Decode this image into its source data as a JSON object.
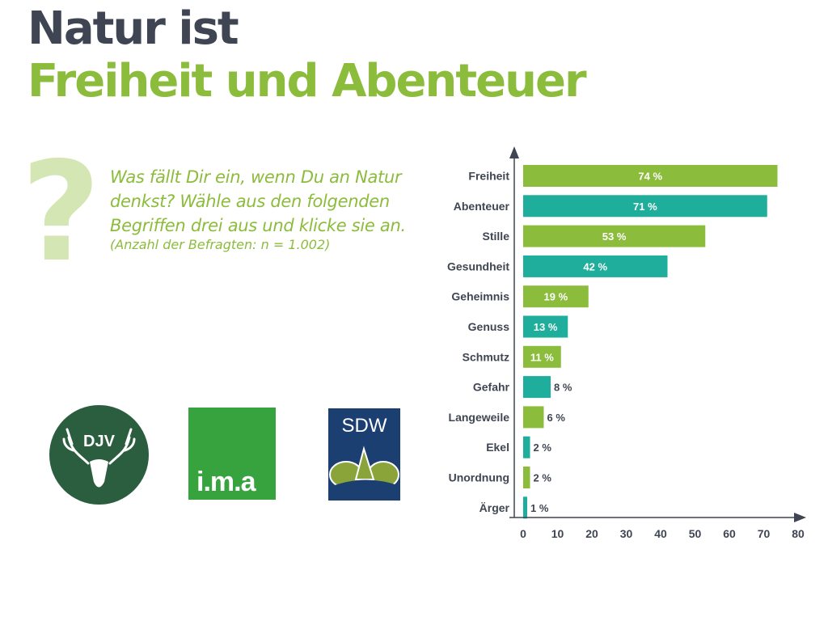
{
  "title_line1": "Natur ist",
  "title_line2": "Freiheit und Abenteuer",
  "question_mark": "?",
  "question": "Was fällt Dir ein, wenn Du an Natur denkst? Wähle aus den folgenden Begriffen drei aus und klicke sie an.",
  "sample_note": "(Anzahl der Befragten: n = 1.002)",
  "logos": {
    "djv": "DJV",
    "ima": "i.m.a",
    "sdw": "SDW"
  },
  "colors": {
    "green": "#8cbc3c",
    "teal": "#1fae9b",
    "dark": "#3f4552"
  },
  "chart_data": {
    "type": "bar",
    "orientation": "horizontal",
    "categories": [
      "Freiheit",
      "Abenteuer",
      "Stille",
      "Gesundheit",
      "Geheimnis",
      "Genuss",
      "Schmutz",
      "Gefahr",
      "Langeweile",
      "Ekel",
      "Unordnung",
      "Ärger"
    ],
    "values": [
      74,
      71,
      53,
      42,
      19,
      13,
      11,
      8,
      6,
      2,
      2,
      1
    ],
    "value_labels": [
      "74 %",
      "71 %",
      "53 %",
      "42 %",
      "19 %",
      "13 %",
      "11 %",
      "8 %",
      "6 %",
      "2 %",
      "2 %",
      "1 %"
    ],
    "bar_colors": [
      "#8cbc3c",
      "#1fae9b",
      "#8cbc3c",
      "#1fae9b",
      "#8cbc3c",
      "#1fae9b",
      "#8cbc3c",
      "#1fae9b",
      "#8cbc3c",
      "#1fae9b",
      "#8cbc3c",
      "#1fae9b"
    ],
    "xlim": [
      0,
      80
    ],
    "xticks": [
      0,
      10,
      20,
      30,
      40,
      50,
      60,
      70,
      80
    ],
    "title": "",
    "xlabel": "",
    "ylabel": "",
    "grid": false
  }
}
